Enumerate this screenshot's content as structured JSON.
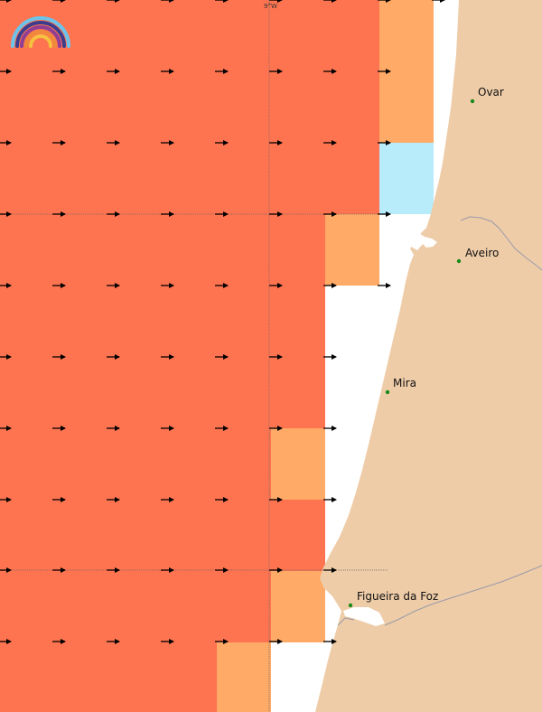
{
  "map": {
    "legend_colors": {
      "high": "#ff7450",
      "medium": "#ffaa66",
      "low": "#b9ecfb",
      "land": "#eecca8",
      "coast_line": "#9a9aa8",
      "town_dot": "#1a8a1a",
      "arrow": "#000000",
      "grid_line": "#666666"
    },
    "graticule": {
      "longitude_label": "9°W"
    },
    "towns": [
      {
        "name": "Ovar"
      },
      {
        "name": "Aveiro"
      },
      {
        "name": "Mira"
      },
      {
        "name": "Figueira da Foz"
      }
    ],
    "logo": {
      "name": "rainbow-logo-icon"
    }
  }
}
